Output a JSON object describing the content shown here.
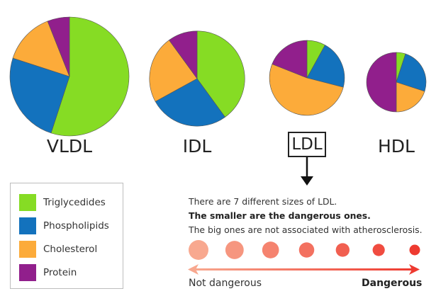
{
  "colors": {
    "triglycerides": "#86dc24",
    "phospholipids": "#1372bd",
    "cholesterol": "#fcab3a",
    "protein": "#911f8c",
    "danger_light": "#f8a88f",
    "danger_dark": "#ee3a30"
  },
  "particles": [
    {
      "name": "VLDL",
      "highlighted": false
    },
    {
      "name": "IDL",
      "highlighted": false
    },
    {
      "name": "LDL",
      "highlighted": true
    },
    {
      "name": "HDL",
      "highlighted": false
    }
  ],
  "legend": {
    "items": [
      {
        "label": "Triglycedides",
        "color_key": "triglycerides"
      },
      {
        "label": "Phospholipids",
        "color_key": "phospholipids"
      },
      {
        "label": "Cholesterol",
        "color_key": "cholesterol"
      },
      {
        "label": "Protein",
        "color_key": "protein"
      }
    ]
  },
  "info": {
    "line1": "There are 7 different sizes of LDL.",
    "line2": "The smaller are the dangerous ones.",
    "line3": "The big ones are not associated with atherosclerosis."
  },
  "scale": {
    "sizes_count": 7,
    "left_label": "Not dangerous",
    "right_label": "Dangerous"
  },
  "chart_data": {
    "type": "pie",
    "title": "",
    "categories": [
      "Triglycedides",
      "Phospholipids",
      "Cholesterol",
      "Protein"
    ],
    "series": [
      {
        "name": "VLDL",
        "values": [
          55,
          25,
          14,
          6
        ],
        "relative_size": 1.0
      },
      {
        "name": "IDL",
        "values": [
          40,
          27,
          23,
          10
        ],
        "relative_size": 0.8
      },
      {
        "name": "LDL",
        "values": [
          8,
          21,
          52,
          19
        ],
        "relative_size": 0.63
      },
      {
        "name": "HDL",
        "values": [
          5,
          25,
          20,
          50
        ],
        "relative_size": 0.5
      }
    ],
    "legend_position": "bottom-left"
  }
}
